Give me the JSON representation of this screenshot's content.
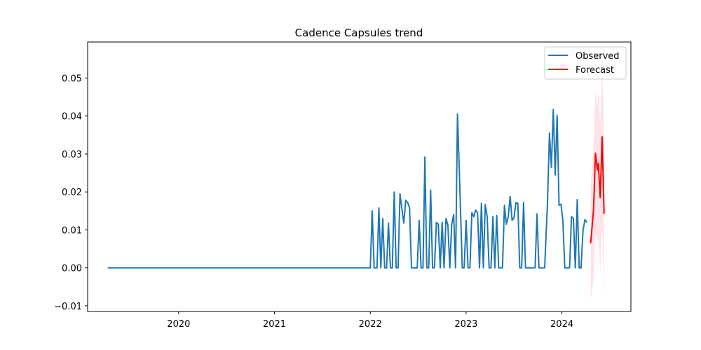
{
  "chart_data": {
    "type": "line",
    "title": "Cadence Capsules trend",
    "xlabel": "",
    "ylabel": "",
    "xlim": [
      2019.05,
      2024.72
    ],
    "ylim": [
      -0.0115,
      0.0595
    ],
    "x_ticks": [
      {
        "value": 2020,
        "label": "2020"
      },
      {
        "value": 2021,
        "label": "2021"
      },
      {
        "value": 2022,
        "label": "2022"
      },
      {
        "value": 2023,
        "label": "2023"
      },
      {
        "value": 2024,
        "label": "2024"
      }
    ],
    "y_ticks": [
      {
        "value": -0.01,
        "label": "−0.01"
      },
      {
        "value": 0.0,
        "label": "0.00"
      },
      {
        "value": 0.01,
        "label": "0.01"
      },
      {
        "value": 0.02,
        "label": "0.02"
      },
      {
        "value": 0.03,
        "label": "0.03"
      },
      {
        "value": 0.04,
        "label": "0.04"
      },
      {
        "value": 0.05,
        "label": "0.05"
      }
    ],
    "grid": false,
    "legend": {
      "position": "top-right",
      "entries": [
        "Observed",
        "Forecast"
      ]
    },
    "series": [
      {
        "name": "Observed",
        "color": "#1f77b4",
        "points": [
          [
            2019.26,
            0
          ],
          [
            2022.0,
            0
          ],
          [
            2022.02,
            0.015
          ],
          [
            2022.04,
            0
          ],
          [
            2022.07,
            0
          ],
          [
            2022.09,
            0.0158
          ],
          [
            2022.11,
            0
          ],
          [
            2022.13,
            0.013
          ],
          [
            2022.15,
            0
          ],
          [
            2022.17,
            0
          ],
          [
            2022.19,
            0.0118
          ],
          [
            2022.21,
            0
          ],
          [
            2022.23,
            0
          ],
          [
            2022.25,
            0.02
          ],
          [
            2022.27,
            0
          ],
          [
            2022.29,
            0
          ],
          [
            2022.31,
            0.0195
          ],
          [
            2022.33,
            0.0155
          ],
          [
            2022.35,
            0.0118
          ],
          [
            2022.37,
            0.0178
          ],
          [
            2022.39,
            0.0172
          ],
          [
            2022.41,
            0.0158
          ],
          [
            2022.43,
            0
          ],
          [
            2022.49,
            0
          ],
          [
            2022.51,
            0.0125
          ],
          [
            2022.53,
            0
          ],
          [
            2022.55,
            0
          ],
          [
            2022.57,
            0.0292
          ],
          [
            2022.59,
            0
          ],
          [
            2022.61,
            0
          ],
          [
            2022.63,
            0.0205
          ],
          [
            2022.65,
            0
          ],
          [
            2022.67,
            0
          ],
          [
            2022.69,
            0.012
          ],
          [
            2022.71,
            0.0115
          ],
          [
            2022.73,
            0
          ],
          [
            2022.75,
            0.012
          ],
          [
            2022.77,
            0
          ],
          [
            2022.79,
            0.013
          ],
          [
            2022.81,
            0.0113
          ],
          [
            2022.83,
            0
          ],
          [
            2022.85,
            0.0115
          ],
          [
            2022.87,
            0.014
          ],
          [
            2022.89,
            0
          ],
          [
            2022.91,
            0.0405
          ],
          [
            2022.93,
            0.025
          ],
          [
            2022.96,
            0
          ],
          [
            2022.98,
            0
          ],
          [
            2023.0,
            0.0125
          ],
          [
            2023.02,
            0
          ],
          [
            2023.04,
            0
          ],
          [
            2023.06,
            0.0145
          ],
          [
            2023.08,
            0.0135
          ],
          [
            2023.1,
            0.0152
          ],
          [
            2023.12,
            0.0145
          ],
          [
            2023.14,
            0
          ],
          [
            2023.16,
            0.017
          ],
          [
            2023.18,
            0
          ],
          [
            2023.2,
            0.0167
          ],
          [
            2023.22,
            0.0135
          ],
          [
            2023.24,
            0
          ],
          [
            2023.26,
            0
          ],
          [
            2023.28,
            0.0135
          ],
          [
            2023.3,
            0
          ],
          [
            2023.32,
            0.0138
          ],
          [
            2023.34,
            0
          ],
          [
            2023.38,
            0
          ],
          [
            2023.4,
            0.0165
          ],
          [
            2023.42,
            0.0115
          ],
          [
            2023.44,
            0.0135
          ],
          [
            2023.46,
            0.0188
          ],
          [
            2023.48,
            0.0125
          ],
          [
            2023.5,
            0.0132
          ],
          [
            2023.52,
            0.0172
          ],
          [
            2023.54,
            0.017
          ],
          [
            2023.56,
            0
          ],
          [
            2023.58,
            0
          ],
          [
            2023.6,
            0.0172
          ],
          [
            2023.62,
            0
          ],
          [
            2023.72,
            0
          ],
          [
            2023.74,
            0.0142
          ],
          [
            2023.76,
            0
          ],
          [
            2023.82,
            0
          ],
          [
            2023.85,
            0.0175
          ],
          [
            2023.87,
            0.0355
          ],
          [
            2023.89,
            0.0265
          ],
          [
            2023.91,
            0.0417
          ],
          [
            2023.93,
            0.0245
          ],
          [
            2023.95,
            0.0402
          ],
          [
            2023.97,
            0.0165
          ],
          [
            2023.99,
            0.0168
          ],
          [
            2024.01,
            0.0125
          ],
          [
            2024.03,
            0
          ],
          [
            2024.08,
            0
          ],
          [
            2024.1,
            0.0135
          ],
          [
            2024.12,
            0.013
          ],
          [
            2024.14,
            0
          ],
          [
            2024.16,
            0.018
          ],
          [
            2024.18,
            0
          ],
          [
            2024.2,
            0
          ],
          [
            2024.22,
            0.0098
          ],
          [
            2024.24,
            0.0127
          ],
          [
            2024.26,
            0.012
          ]
        ]
      },
      {
        "name": "Forecast",
        "color": "#ff0000",
        "points": [
          [
            2024.3,
            0.0065
          ],
          [
            2024.33,
            0.0152
          ],
          [
            2024.35,
            0.0302
          ],
          [
            2024.37,
            0.0258
          ],
          [
            2024.38,
            0.0275
          ],
          [
            2024.4,
            0.0185
          ],
          [
            2024.42,
            0.0345
          ],
          [
            2024.44,
            0.0142
          ]
        ],
        "band_upper": [
          [
            2024.3,
            0.021
          ],
          [
            2024.33,
            0.033
          ],
          [
            2024.35,
            0.0475
          ],
          [
            2024.37,
            0.042
          ],
          [
            2024.38,
            0.047
          ],
          [
            2024.4,
            0.038
          ],
          [
            2024.42,
            0.0555
          ],
          [
            2024.44,
            0.036
          ]
        ],
        "band_lower": [
          [
            2024.3,
            -0.0085
          ],
          [
            2024.33,
            -0.003
          ],
          [
            2024.35,
            0.0095
          ],
          [
            2024.37,
            0.0065
          ],
          [
            2024.38,
            0.0085
          ],
          [
            2024.4,
            -0.0015
          ],
          [
            2024.42,
            0.0125
          ],
          [
            2024.44,
            -0.0085
          ]
        ],
        "band_color": "#ffc0cb"
      }
    ]
  }
}
